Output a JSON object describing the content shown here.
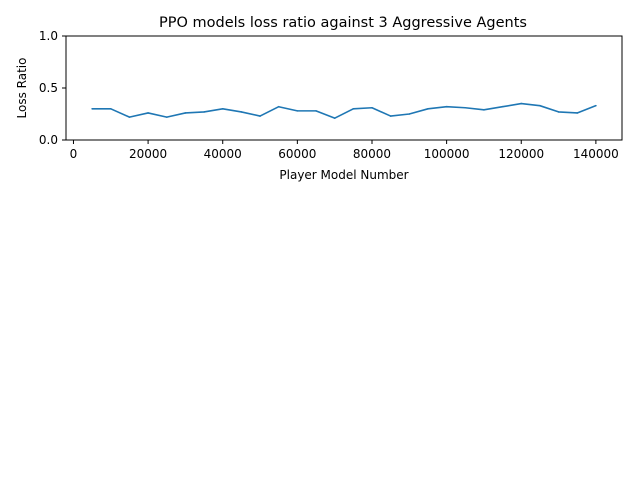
{
  "chart_data": {
    "type": "line",
    "title": "PPO models loss ratio against 3 Aggressive Agents",
    "xlabel": "Player Model Number",
    "ylabel": "Loss Ratio",
    "xlim": [
      -2000,
      147000
    ],
    "ylim": [
      0.0,
      1.0
    ],
    "xticks": [
      0,
      20000,
      40000,
      60000,
      80000,
      100000,
      120000,
      140000
    ],
    "yticks": [
      0.0,
      0.5,
      1.0
    ],
    "xtick_labels": [
      "0",
      "20000",
      "40000",
      "60000",
      "80000",
      "100000",
      "120000",
      "140000"
    ],
    "ytick_labels": [
      "0.0",
      "0.5",
      "1.0"
    ],
    "grid": false,
    "legend": "none",
    "series_color": "#1f77b4",
    "x": [
      5000,
      10000,
      15000,
      20000,
      25000,
      30000,
      35000,
      40000,
      45000,
      50000,
      55000,
      60000,
      65000,
      70000,
      75000,
      80000,
      85000,
      90000,
      95000,
      100000,
      105000,
      110000,
      115000,
      120000,
      125000,
      130000,
      135000,
      140000
    ],
    "series": [
      {
        "values": [
          0.3,
          0.3,
          0.22,
          0.26,
          0.22,
          0.26,
          0.27,
          0.3,
          0.27,
          0.23,
          0.32,
          0.28,
          0.28,
          0.21,
          0.3,
          0.31,
          0.23,
          0.25,
          0.3,
          0.32,
          0.31,
          0.29,
          0.32,
          0.35,
          0.33,
          0.27,
          0.26,
          0.33
        ]
      }
    ]
  }
}
